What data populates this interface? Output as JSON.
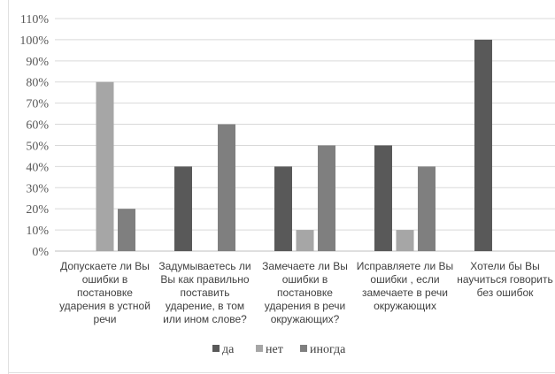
{
  "chart_data": {
    "type": "bar",
    "categories": [
      [
        "Допускаете ли Вы",
        "ошибки в",
        "постановке",
        "ударения в устной",
        "речи"
      ],
      [
        "Задумываетесь ли",
        "Вы как правильно",
        "поставить",
        "ударение, в том",
        "или ином слове?"
      ],
      [
        "Замечаете ли Вы",
        "ошибки в",
        "постановке",
        "ударения в речи",
        "окружающих?"
      ],
      [
        "Исправляете ли Вы",
        "ошибки , если",
        "замечаете в речи",
        "окружающих"
      ],
      [
        "Хотели бы Вы",
        "научиться говорить",
        "без ошибок"
      ]
    ],
    "series": [
      {
        "name": "да",
        "color": "#595959",
        "values": [
          0,
          40,
          40,
          50,
          100
        ]
      },
      {
        "name": "нет",
        "color": "#a6a6a6",
        "values": [
          80,
          0,
          10,
          10,
          0
        ]
      },
      {
        "name": "иногда",
        "color": "#7f7f7f",
        "values": [
          20,
          60,
          50,
          40,
          0
        ]
      }
    ],
    "ylim": [
      0,
      110
    ],
    "yticks": [
      0,
      10,
      20,
      30,
      40,
      50,
      60,
      70,
      80,
      90,
      100,
      110
    ],
    "ytick_labels": [
      "0%",
      "10%",
      "20%",
      "30%",
      "40%",
      "50%",
      "60%",
      "70%",
      "80%",
      "90%",
      "100%",
      "110%"
    ],
    "grid": true,
    "legend_position": "bottom"
  }
}
